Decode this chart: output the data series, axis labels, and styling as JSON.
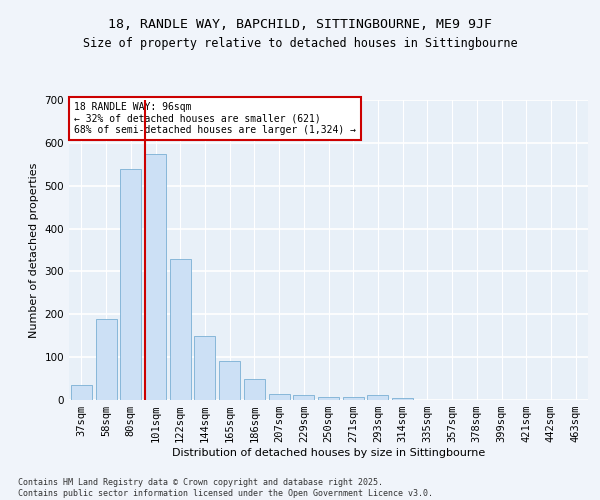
{
  "title1": "18, RANDLE WAY, BAPCHILD, SITTINGBOURNE, ME9 9JF",
  "title2": "Size of property relative to detached houses in Sittingbourne",
  "xlabel": "Distribution of detached houses by size in Sittingbourne",
  "ylabel": "Number of detached properties",
  "categories": [
    "37sqm",
    "58sqm",
    "80sqm",
    "101sqm",
    "122sqm",
    "144sqm",
    "165sqm",
    "186sqm",
    "207sqm",
    "229sqm",
    "250sqm",
    "271sqm",
    "293sqm",
    "314sqm",
    "335sqm",
    "357sqm",
    "378sqm",
    "399sqm",
    "421sqm",
    "442sqm",
    "463sqm"
  ],
  "values": [
    35,
    190,
    540,
    575,
    330,
    150,
    90,
    50,
    15,
    12,
    8,
    8,
    12,
    5,
    0,
    0,
    0,
    0,
    0,
    0,
    0
  ],
  "bar_color": "#cce0f5",
  "bar_edge_color": "#7ab0d4",
  "background_color": "#e8f0f8",
  "grid_color": "#ffffff",
  "vline_color": "#cc0000",
  "annotation_text": "18 RANDLE WAY: 96sqm\n← 32% of detached houses are smaller (621)\n68% of semi-detached houses are larger (1,324) →",
  "annotation_box_color": "#ffffff",
  "annotation_box_edge": "#cc0000",
  "ylim": [
    0,
    700
  ],
  "yticks": [
    0,
    100,
    200,
    300,
    400,
    500,
    600,
    700
  ],
  "footnote": "Contains HM Land Registry data © Crown copyright and database right 2025.\nContains public sector information licensed under the Open Government Licence v3.0.",
  "title_fontsize": 9.5,
  "subtitle_fontsize": 8.5,
  "axis_label_fontsize": 8,
  "tick_fontsize": 7.5,
  "annot_fontsize": 7,
  "footnote_fontsize": 6
}
